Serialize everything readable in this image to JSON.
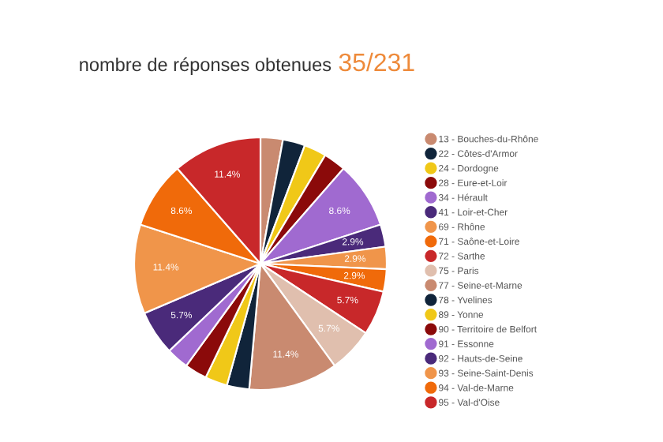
{
  "chart_data": {
    "type": "pie",
    "title": "nombre de réponses obtenues",
    "subtitle": "35/231",
    "categories": [
      "13 - Bouches-du-Rhône",
      "22 - Côtes-d'Armor",
      "24 - Dordogne",
      "28 - Eure-et-Loir",
      "34 - Hérault",
      "41 - Loir-et-Cher",
      "69 - Rhône",
      "71 - Saône-et-Loire",
      "72 - Sarthe",
      "75 - Paris",
      "77 - Seine-et-Marne",
      "78 - Yvelines",
      "89 - Yonne",
      "90 - Territoire de Belfort",
      "91 - Essonne",
      "92 - Hauts-de-Seine",
      "93 - Seine-Saint-Denis",
      "94 - Val-de-Marne",
      "95 - Val-d'Oise"
    ],
    "values": [
      2.8571,
      2.8571,
      2.8571,
      2.8571,
      8.5714,
      2.8571,
      2.8571,
      2.8571,
      5.7143,
      5.7143,
      11.4286,
      2.8571,
      2.8571,
      2.8571,
      2.8571,
      5.7143,
      11.4286,
      8.5714,
      11.4286
    ],
    "value_labels": [
      null,
      null,
      null,
      null,
      "8.6%",
      "2.9%",
      "2.9%",
      "2.9%",
      "5.7%",
      "5.7%",
      "11.4%",
      null,
      null,
      null,
      null,
      "5.7%",
      "11.4%",
      "8.6%",
      "11.4%"
    ],
    "colors": [
      "#c98a70",
      "#10243a",
      "#f0c818",
      "#8b0a0a",
      "#a06ad0",
      "#4a2a7a",
      "#f0954a",
      "#f06a0a",
      "#c8282a",
      "#e0bfae",
      "#c98a70",
      "#10243a",
      "#f0c818",
      "#8b0a0a",
      "#a06ad0",
      "#4a2a7a",
      "#f0954a",
      "#f06a0a",
      "#c8282a"
    ],
    "legend": "right"
  }
}
